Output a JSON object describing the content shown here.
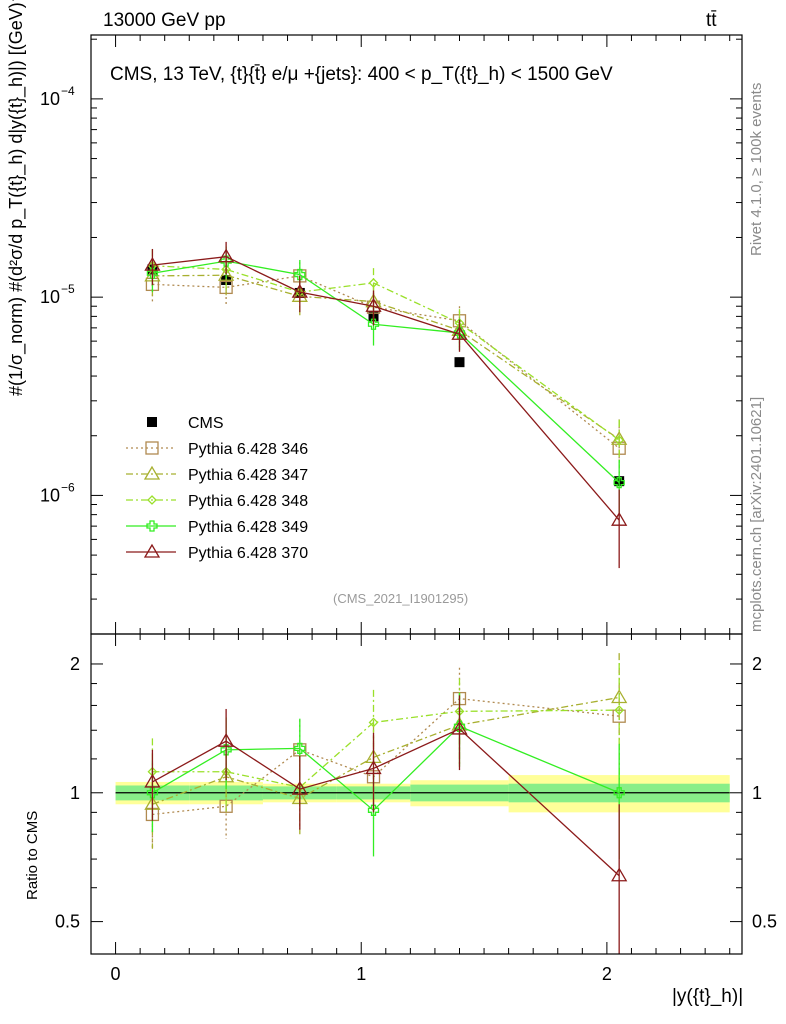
{
  "header": {
    "left": "13000 GeV pp",
    "right": "tt̄"
  },
  "side_labels": {
    "rivet": "Rivet 4.1.0, ≥ 100k events",
    "mcplots": "mcplots.cern.ch [arXiv:2401.10621]"
  },
  "colors": {
    "cms": "#000000",
    "p346": "#b08a50",
    "p347": "#a8b030",
    "p348": "#9ae02a",
    "p349": "#33ee22",
    "p370": "#8b1a1a",
    "band_outer": "#ffff99",
    "band_inner": "#88ee88"
  },
  "chart_data": [
    {
      "type": "scatter",
      "panel": "main",
      "title": "CMS, 13 TeV, {t}{t̄} e/μ +{jets}: 400 <  p_T({t}_h) < 1500 GeV",
      "ylabel": "#(1/σ_norm) #(d²σ/d p_T({t}_h) d|y({t}_h)|) [(GeV)⁻¹]",
      "yscale": "log",
      "ylim": [
        2e-07,
        0.00021
      ],
      "xlim": [
        -0.1,
        2.55
      ],
      "ytick_labels": [
        "10^-6",
        "10^-5",
        "10^-4"
      ],
      "reference": "(CMS_2021_I1901295)",
      "x_edges": [
        0,
        0.3,
        0.6,
        0.9,
        1.2,
        1.6,
        2.5
      ],
      "x": [
        0.15,
        0.45,
        0.75,
        1.05,
        1.4,
        2.05
      ],
      "series": [
        {
          "name": "CMS",
          "key": "cms",
          "values": [
            1.38e-05,
            1.22e-05,
            1.05e-05,
            8e-06,
            4.7e-06,
            1.18e-06
          ],
          "errors": [
            4e-07,
            4e-07,
            4e-07,
            3e-07,
            2e-07,
            6e-08
          ]
        },
        {
          "name": "Pythia 6.428 346",
          "key": "p346",
          "values": [
            1.16e-05,
            1.12e-05,
            1.28e-05,
            8.9e-06,
            7.6e-06,
            1.73e-06
          ],
          "errors": [
            2.2e-06,
            2.2e-06,
            2.2e-06,
            1.6e-06,
            1.4e-06,
            5e-07
          ]
        },
        {
          "name": "Pythia 6.428 347",
          "key": "p347",
          "values": [
            1.28e-05,
            1.29e-05,
            1.01e-05,
            9.5e-06,
            6.8e-06,
            1.92e-06
          ],
          "errors": [
            2.8e-06,
            2.8e-06,
            2e-06,
            1.8e-06,
            1.2e-06,
            5e-07
          ]
        },
        {
          "name": "Pythia 6.428 348",
          "key": "p348",
          "values": [
            1.44e-05,
            1.38e-05,
            1.06e-05,
            1.18e-05,
            7.4e-06,
            1.9e-06
          ],
          "errors": [
            3e-06,
            3e-06,
            2.2e-06,
            2.2e-06,
            1.3e-06,
            5e-07
          ]
        },
        {
          "name": "Pythia 6.428 349",
          "key": "p349",
          "values": [
            1.32e-05,
            1.52e-05,
            1.3e-05,
            7.3e-06,
            6.6e-06,
            1.16e-06
          ],
          "errors": [
            2.6e-06,
            2.8e-06,
            2.4e-06,
            1.6e-06,
            1.2e-06,
            3.5e-07
          ]
        },
        {
          "name": "Pythia 6.428 370",
          "key": "p370",
          "values": [
            1.45e-05,
            1.6e-05,
            1.06e-05,
            9e-06,
            6.5e-06,
            7.5e-07
          ],
          "errors": [
            3e-06,
            3e-06,
            2.2e-06,
            1.8e-06,
            1.2e-06,
            3.2e-07
          ]
        }
      ],
      "legend": [
        "CMS",
        "Pythia 6.428 346",
        "Pythia 6.428 347",
        "Pythia 6.428 348",
        "Pythia 6.428 349",
        "Pythia 6.428 370"
      ],
      "legend_position": "lower-left"
    },
    {
      "type": "line",
      "panel": "ratio",
      "ylabel": "Ratio to CMS",
      "xlabel": "|y({t}_h)|",
      "yscale": "log",
      "ylim": [
        0.42,
        2.35
      ],
      "ytick_labels": [
        "0.5",
        "1",
        "2"
      ],
      "xtick_labels": [
        "0",
        "1",
        "2"
      ],
      "band_outer_halfwidth": [
        0.06,
        0.06,
        0.05,
        0.05,
        0.07,
        0.1
      ],
      "band_inner_halfwidth": [
        0.04,
        0.04,
        0.035,
        0.035,
        0.045,
        0.05
      ],
      "series": [
        {
          "name": "Pythia 6.428 346",
          "key": "p346",
          "values": [
            0.89,
            0.93,
            1.26,
            1.09,
            1.66,
            1.51
          ],
          "errors": [
            0.15,
            0.15,
            0.22,
            0.22,
            0.3,
            0.45
          ]
        },
        {
          "name": "Pythia 6.428 347",
          "key": "p347",
          "values": [
            0.94,
            1.09,
            0.97,
            1.21,
            1.44,
            1.67
          ],
          "errors": [
            0.2,
            0.2,
            0.17,
            0.22,
            0.28,
            0.45
          ]
        },
        {
          "name": "Pythia 6.428 348",
          "key": "p348",
          "values": [
            1.12,
            1.12,
            1.03,
            1.46,
            1.55,
            1.56
          ],
          "errors": [
            0.22,
            0.22,
            0.2,
            0.28,
            0.3,
            0.45
          ]
        },
        {
          "name": "Pythia 6.428 349",
          "key": "p349",
          "values": [
            1.0,
            1.26,
            1.27,
            0.91,
            1.43,
            1.0
          ],
          "errors": [
            0.19,
            0.24,
            0.22,
            0.2,
            0.28,
            0.3
          ]
        },
        {
          "name": "Pythia 6.428 370",
          "key": "p370",
          "values": [
            1.06,
            1.32,
            1.02,
            1.14,
            1.41,
            0.64
          ],
          "errors": [
            0.2,
            0.25,
            0.2,
            0.24,
            0.28,
            0.3
          ]
        }
      ]
    }
  ]
}
